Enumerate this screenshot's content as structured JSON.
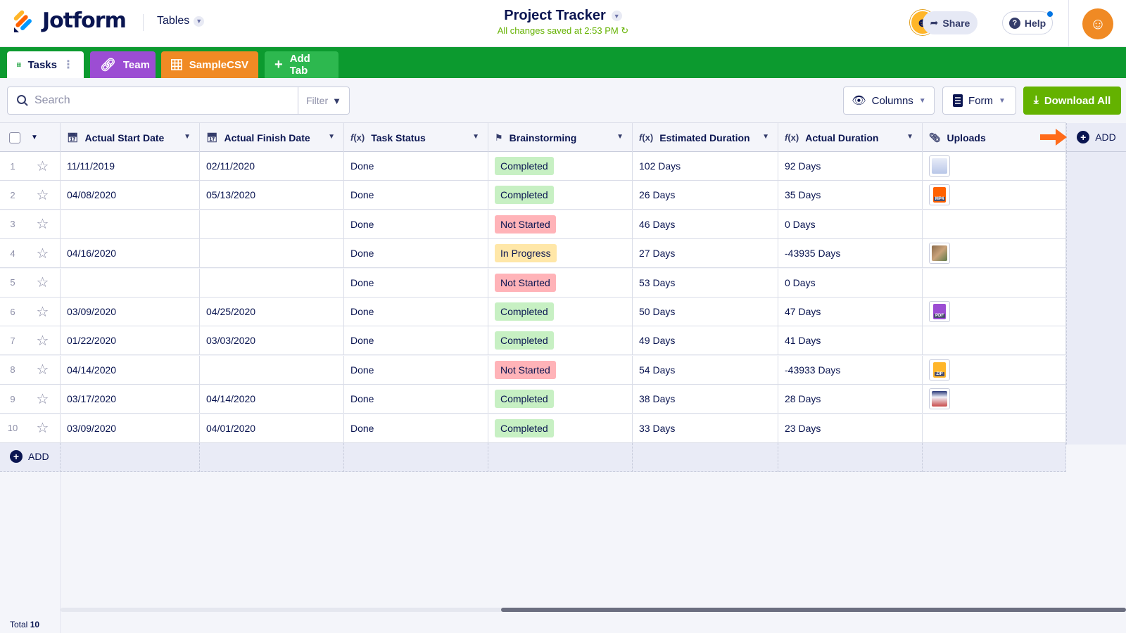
{
  "app": {
    "logo_text": "Jotform",
    "product_selector": "Tables",
    "doc_title": "Project Tracker",
    "saved_status": "All changes saved at 2:53 PM",
    "share_label": "Share",
    "help_label": "Help"
  },
  "tabs": [
    {
      "label": "Tasks",
      "icon": "grid-icon"
    },
    {
      "label": "Team",
      "icon": "link-icon"
    },
    {
      "label": "SampleCSV",
      "icon": "grid-icon"
    },
    {
      "label": "Add Tab",
      "icon": "plus-icon"
    }
  ],
  "toolbar": {
    "search_placeholder": "Search",
    "filter_label": "Filter",
    "columns_label": "Columns",
    "form_label": "Form",
    "download_label": "Download All"
  },
  "columns": [
    {
      "label": "Actual Start Date",
      "icon": "calendar-icon"
    },
    {
      "label": "Actual Finish Date",
      "icon": "calendar-icon"
    },
    {
      "label": "Task Status",
      "icon": "formula-icon"
    },
    {
      "label": "Brainstorming",
      "icon": "tag-icon"
    },
    {
      "label": "Estimated Duration",
      "icon": "formula-icon"
    },
    {
      "label": "Actual Duration",
      "icon": "formula-icon"
    },
    {
      "label": "Uploads",
      "icon": "paperclip-icon"
    }
  ],
  "rows": [
    {
      "num": "1",
      "start": "11/11/2019",
      "finish": "02/11/2020",
      "status": "Done",
      "brainstorm": "Completed",
      "est": "102 Days",
      "actual": "92 Days",
      "upload": "image"
    },
    {
      "num": "2",
      "start": "04/08/2020",
      "finish": "05/13/2020",
      "status": "Done",
      "brainstorm": "Completed",
      "est": "26 Days",
      "actual": "35 Days",
      "upload": "MP4"
    },
    {
      "num": "3",
      "start": "",
      "finish": "",
      "status": "Done",
      "brainstorm": "Not Started",
      "est": "46 Days",
      "actual": "0 Days",
      "upload": ""
    },
    {
      "num": "4",
      "start": "04/16/2020",
      "finish": "",
      "status": "Done",
      "brainstorm": "In Progress",
      "est": "27 Days",
      "actual": "-43935 Days",
      "upload": "photo"
    },
    {
      "num": "5",
      "start": "",
      "finish": "",
      "status": "Done",
      "brainstorm": "Not Started",
      "est": "53 Days",
      "actual": "0 Days",
      "upload": ""
    },
    {
      "num": "6",
      "start": "03/09/2020",
      "finish": "04/25/2020",
      "status": "Done",
      "brainstorm": "Completed",
      "est": "50 Days",
      "actual": "47 Days",
      "upload": "PDF"
    },
    {
      "num": "7",
      "start": "01/22/2020",
      "finish": "03/03/2020",
      "status": "Done",
      "brainstorm": "Completed",
      "est": "49 Days",
      "actual": "41 Days",
      "upload": ""
    },
    {
      "num": "8",
      "start": "04/14/2020",
      "finish": "",
      "status": "Done",
      "brainstorm": "Not Started",
      "est": "54 Days",
      "actual": "-43933 Days",
      "upload": "ZIP"
    },
    {
      "num": "9",
      "start": "03/17/2020",
      "finish": "04/14/2020",
      "status": "Done",
      "brainstorm": "Completed",
      "est": "38 Days",
      "actual": "28 Days",
      "upload": "screenshot"
    },
    {
      "num": "10",
      "start": "03/09/2020",
      "finish": "04/01/2020",
      "status": "Done",
      "brainstorm": "Completed",
      "est": "33 Days",
      "actual": "23 Days",
      "upload": ""
    }
  ],
  "add_row_label": "ADD",
  "add_column_label": "ADD",
  "footer": {
    "total_label": "Total",
    "total_count": "10"
  },
  "colors": {
    "tabbar": "#0c9a2f",
    "team_tab": "#9c4dd3",
    "sample_tab": "#f08a24",
    "addtab": "#2db84f",
    "download": "#64b200",
    "completed": "#c7f0c3",
    "not_started": "#ffb3b8",
    "in_progress": "#ffe7a8"
  }
}
